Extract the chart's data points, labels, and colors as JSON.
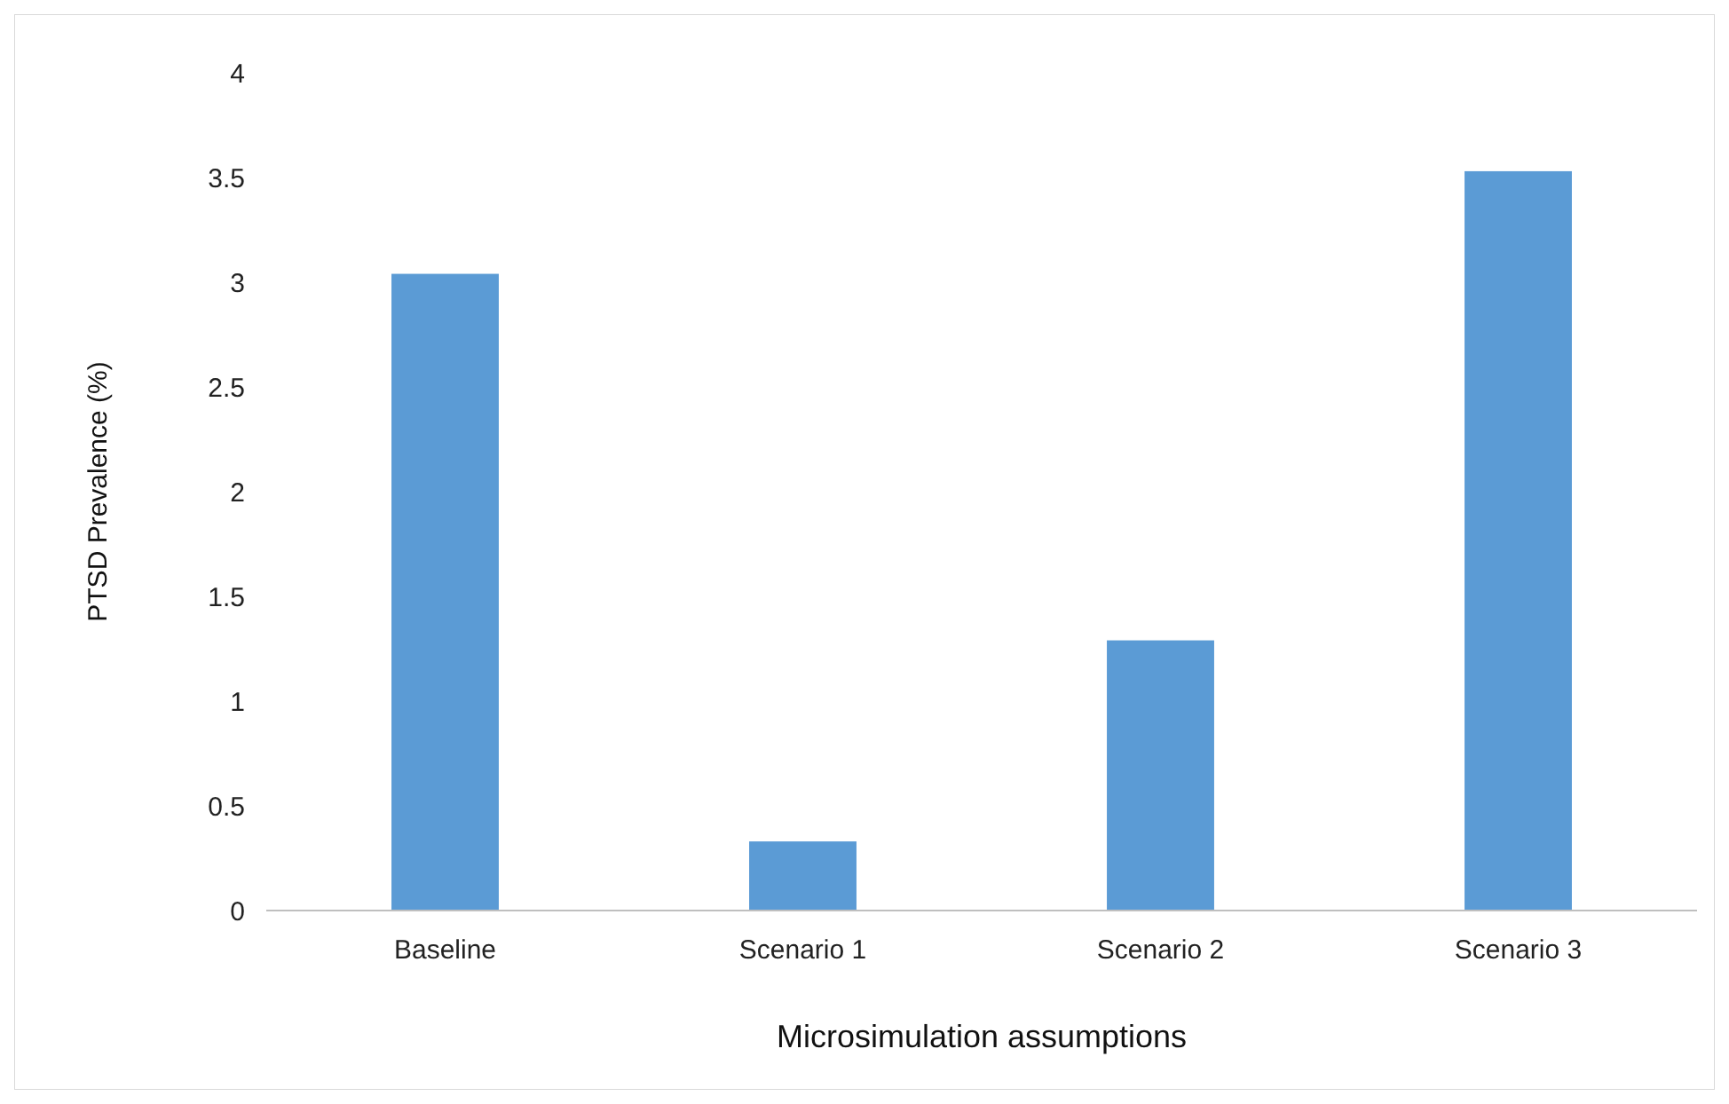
{
  "chart_data": {
    "type": "bar",
    "xlabel": "Microsimulation assumptions",
    "ylabel": "PTSD Prevalence (%)",
    "categories": [
      "Baseline",
      "Scenario 1",
      "Scenario 2",
      "Scenario 3"
    ],
    "values": [
      3.04,
      0.33,
      1.29,
      3.53
    ],
    "color": "#5b9bd5",
    "ylim": [
      0,
      4
    ],
    "yticks": [
      0,
      {
        "value": 0.5,
        "label": "0.5"
      },
      1,
      {
        "value": 1.5,
        "label": "1.5"
      },
      2,
      {
        "value": 2.5,
        "label": "2.5"
      },
      3,
      {
        "value": 3.5,
        "label": "3.5"
      },
      4
    ],
    "grid": false
  }
}
